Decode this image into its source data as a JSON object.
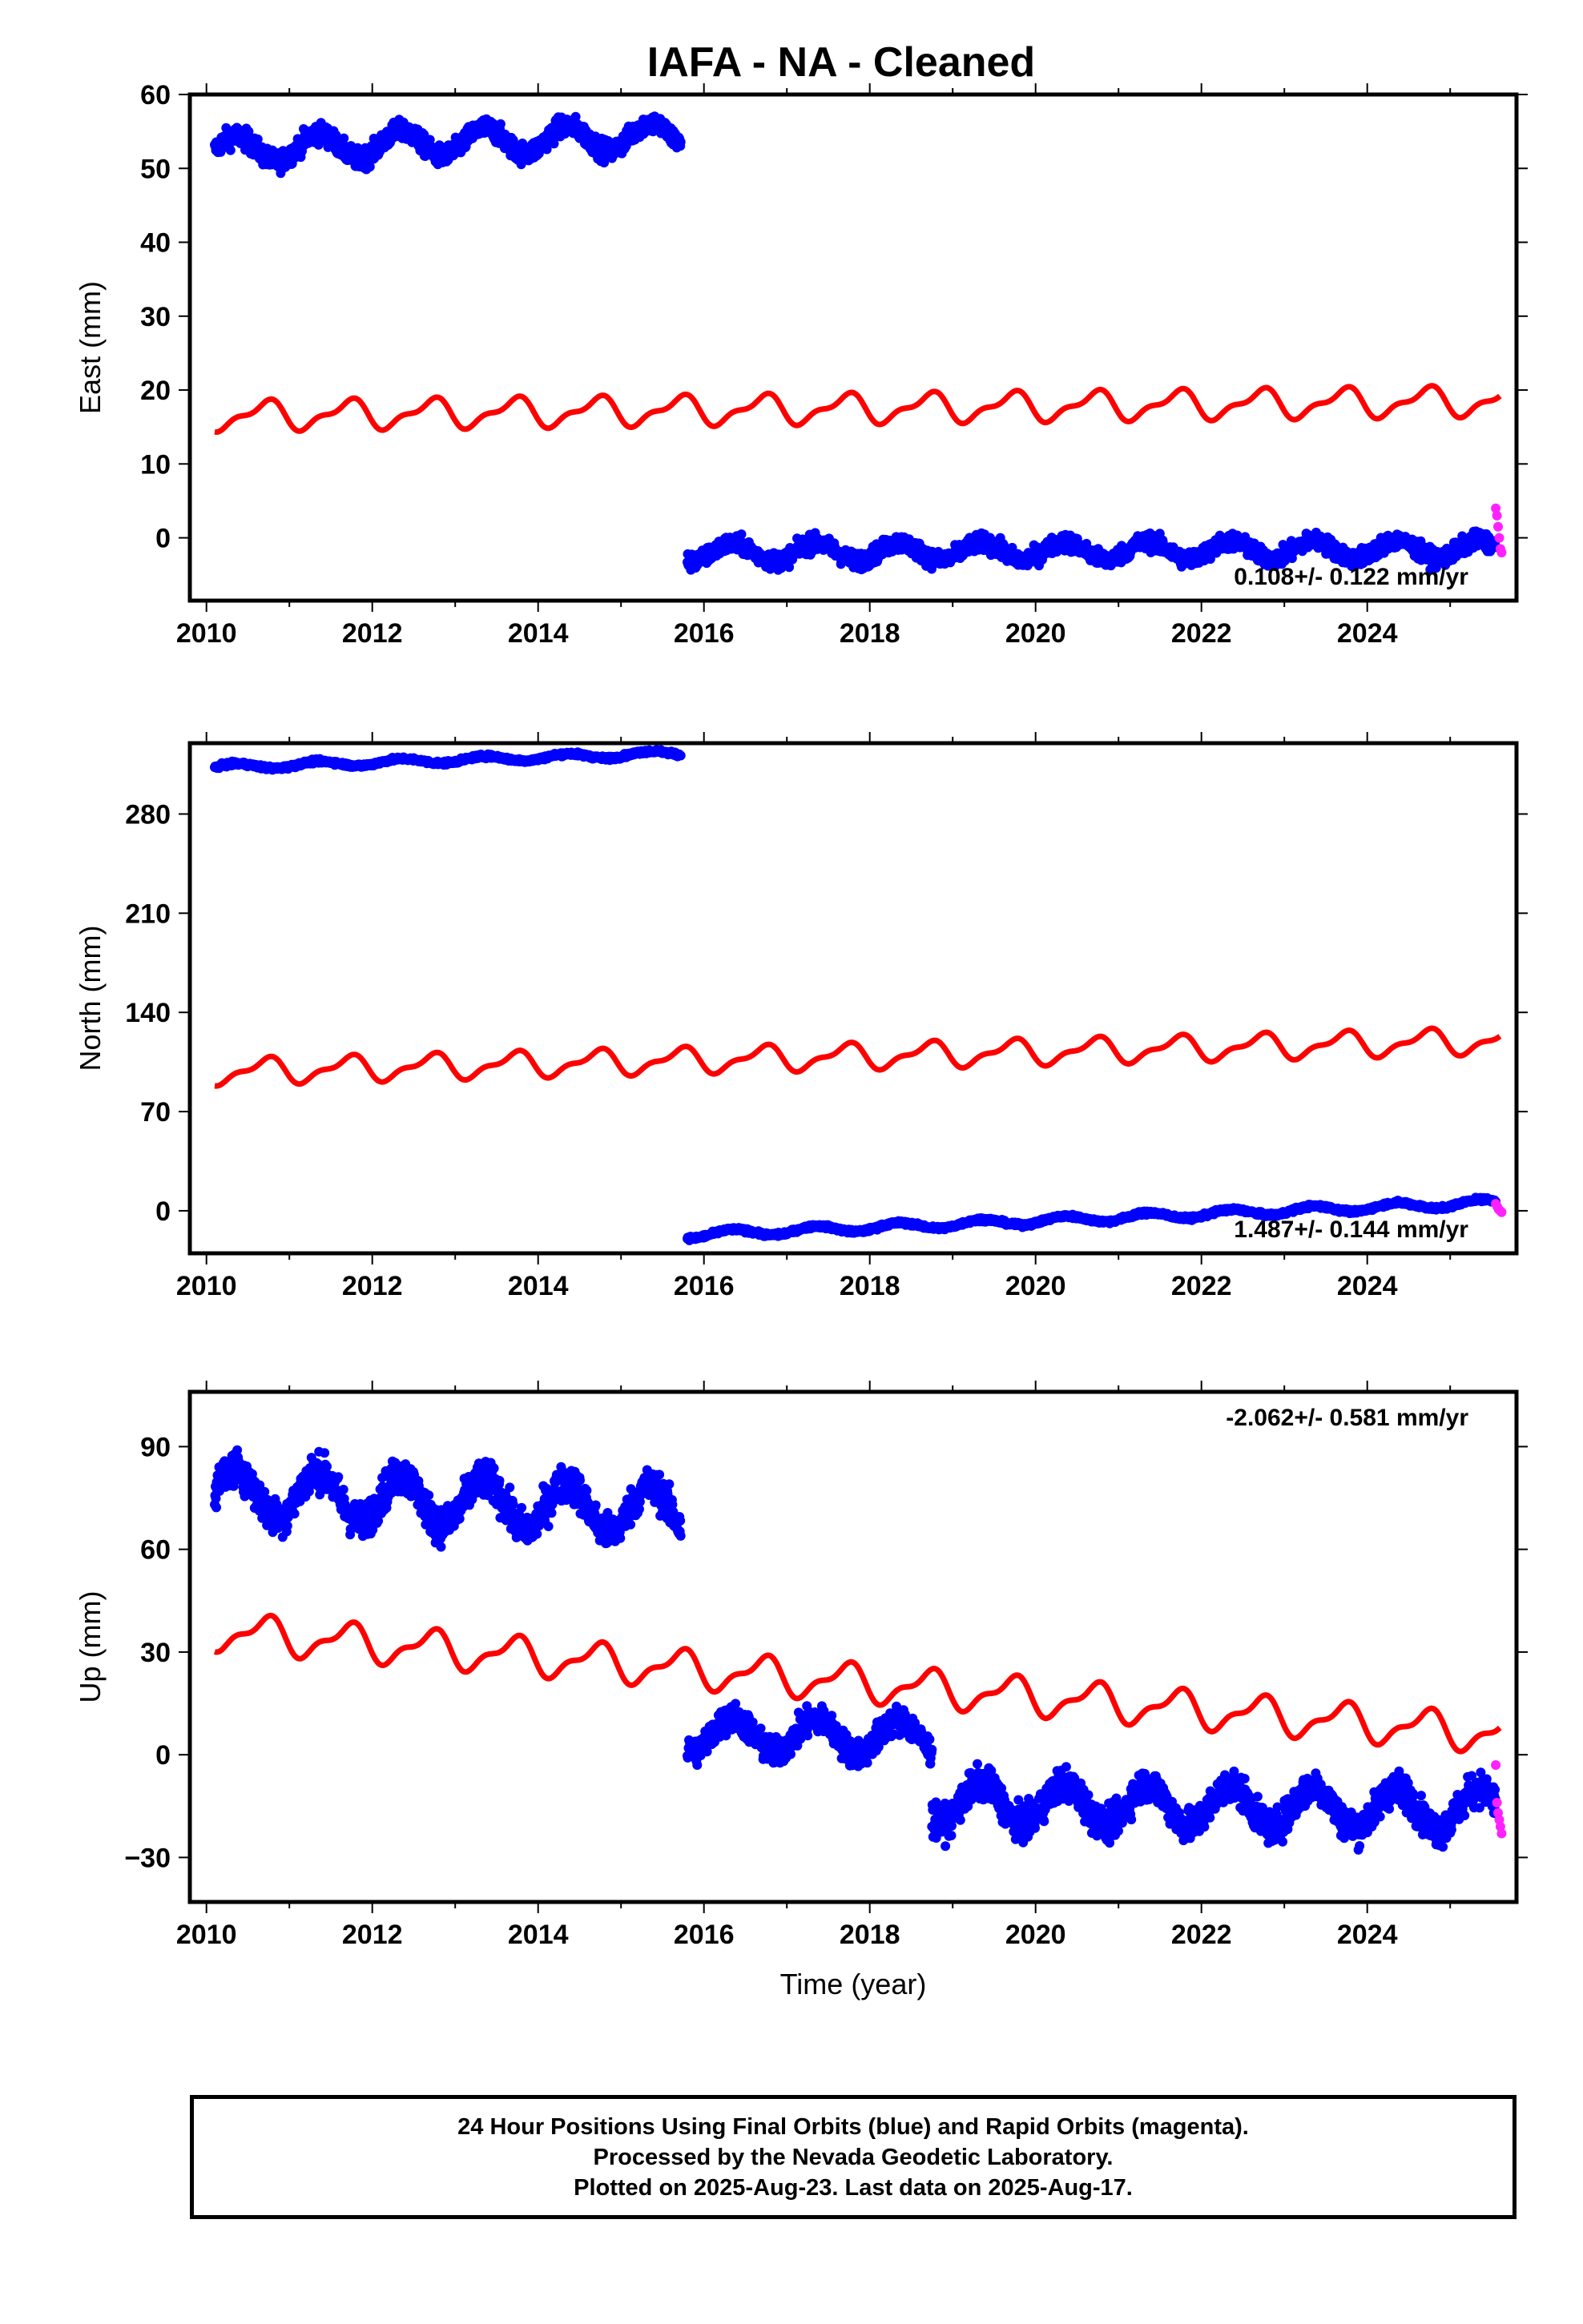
{
  "title": "IAFA  - NA - Cleaned",
  "colors": {
    "final": "#0000ff",
    "rapid": "#ff20ff",
    "model": "#ff0000",
    "frame": "#000000"
  },
  "chart_data": [
    {
      "type": "scatter",
      "ylabel": "East (mm)",
      "xlabel": "",
      "xlim": [
        2009.8,
        2025.8
      ],
      "ylim": [
        -8.5,
        60
      ],
      "yticks": [
        0,
        10,
        20,
        30,
        40,
        50,
        60
      ],
      "xticks": [
        2010,
        2012,
        2014,
        2016,
        2018,
        2020,
        2022,
        2024
      ],
      "rate_label": "0.108+/- 0.122 mm/yr",
      "rate_pos": "bottom-right",
      "series": [
        {
          "kind": "final",
          "segment": "2010.1-2015.7",
          "x_range": [
            2010.1,
            2015.72
          ],
          "mean_start": 52.5,
          "mean_end": 54.5,
          "seasonal_amp": 1.8,
          "scatter": 1.3
        },
        {
          "kind": "final",
          "segment": "2015.8-2025.6",
          "x_range": [
            2015.8,
            2025.55
          ],
          "mean_start": -2.0,
          "mean_end": -1.5,
          "seasonal_amp": 1.2,
          "scatter": 1.1
        },
        {
          "kind": "rapid",
          "x_range": [
            2025.55,
            2025.62
          ],
          "values": [
            4.0,
            3.0,
            1.5,
            0.0,
            -1.5,
            -2.0
          ]
        },
        {
          "kind": "model",
          "x_range": [
            2010.1,
            2025.6
          ],
          "y_start": 16.5,
          "y_end": 18.5,
          "seasonal_amp": 2.2
        }
      ]
    },
    {
      "type": "scatter",
      "ylabel": "North (mm)",
      "xlabel": "",
      "xlim": [
        2009.8,
        2025.8
      ],
      "ylim": [
        -30,
        330
      ],
      "yticks": [
        0,
        70,
        140,
        210,
        280
      ],
      "xticks": [
        2010,
        2012,
        2014,
        2016,
        2018,
        2020,
        2022,
        2024
      ],
      "rate_label": "1.487+/- 0.144 mm/yr",
      "rate_pos": "bottom-right",
      "series": [
        {
          "kind": "final",
          "x_range": [
            2010.1,
            2015.72
          ],
          "mean_start": 313,
          "mean_end": 323,
          "seasonal_amp": 2.0,
          "scatter": 1.2
        },
        {
          "kind": "final",
          "x_range": [
            2015.8,
            2025.55
          ],
          "mean_start": -17,
          "mean_end": 6,
          "seasonal_amp": 2.5,
          "scatter": 1.2
        },
        {
          "kind": "rapid",
          "x_range": [
            2025.55,
            2025.62
          ],
          "values": [
            5,
            3,
            1,
            0,
            -1
          ]
        },
        {
          "kind": "model",
          "x_range": [
            2010.1,
            2025.6
          ],
          "y_start": 98,
          "y_end": 120,
          "seasonal_amp": 10
        }
      ]
    },
    {
      "type": "scatter",
      "ylabel": "Up (mm)",
      "xlabel": "Time (year)",
      "xlim": [
        2009.8,
        2025.8
      ],
      "ylim": [
        -43,
        106
      ],
      "yticks": [
        -30,
        0,
        30,
        60,
        90
      ],
      "xticks": [
        2010,
        2012,
        2014,
        2016,
        2018,
        2020,
        2022,
        2024
      ],
      "rate_label": "-2.062+/- 0.581 mm/yr",
      "rate_pos": "top-right",
      "series": [
        {
          "kind": "final",
          "x_range": [
            2010.1,
            2015.72
          ],
          "mean_start": 77,
          "mean_end": 71,
          "seasonal_amp": 7,
          "scatter": 5
        },
        {
          "kind": "final",
          "x_range": [
            2015.8,
            2018.75
          ],
          "mean_start": 6,
          "mean_end": 5,
          "seasonal_amp": 5,
          "scatter": 4
        },
        {
          "kind": "final",
          "x_range": [
            2018.75,
            2025.55
          ],
          "mean_start": -14,
          "mean_end": -16,
          "seasonal_amp": 6,
          "scatter": 4.5
        },
        {
          "kind": "rapid",
          "x_range": [
            2025.55,
            2025.62
          ],
          "values": [
            -3,
            -14,
            -17,
            -19,
            -21,
            -23
          ]
        },
        {
          "kind": "model",
          "x_range": [
            2010.1,
            2025.6
          ],
          "y_start": 36,
          "y_end": 6,
          "seasonal_amp": 6
        }
      ]
    }
  ],
  "footer": {
    "line1": "24 Hour Positions Using Final Orbits (blue) and Rapid Orbits (magenta).",
    "line2": "Processed by the Nevada Geodetic Laboratory.",
    "line3": "Plotted on 2025-Aug-23. Last data on 2025-Aug-17."
  }
}
